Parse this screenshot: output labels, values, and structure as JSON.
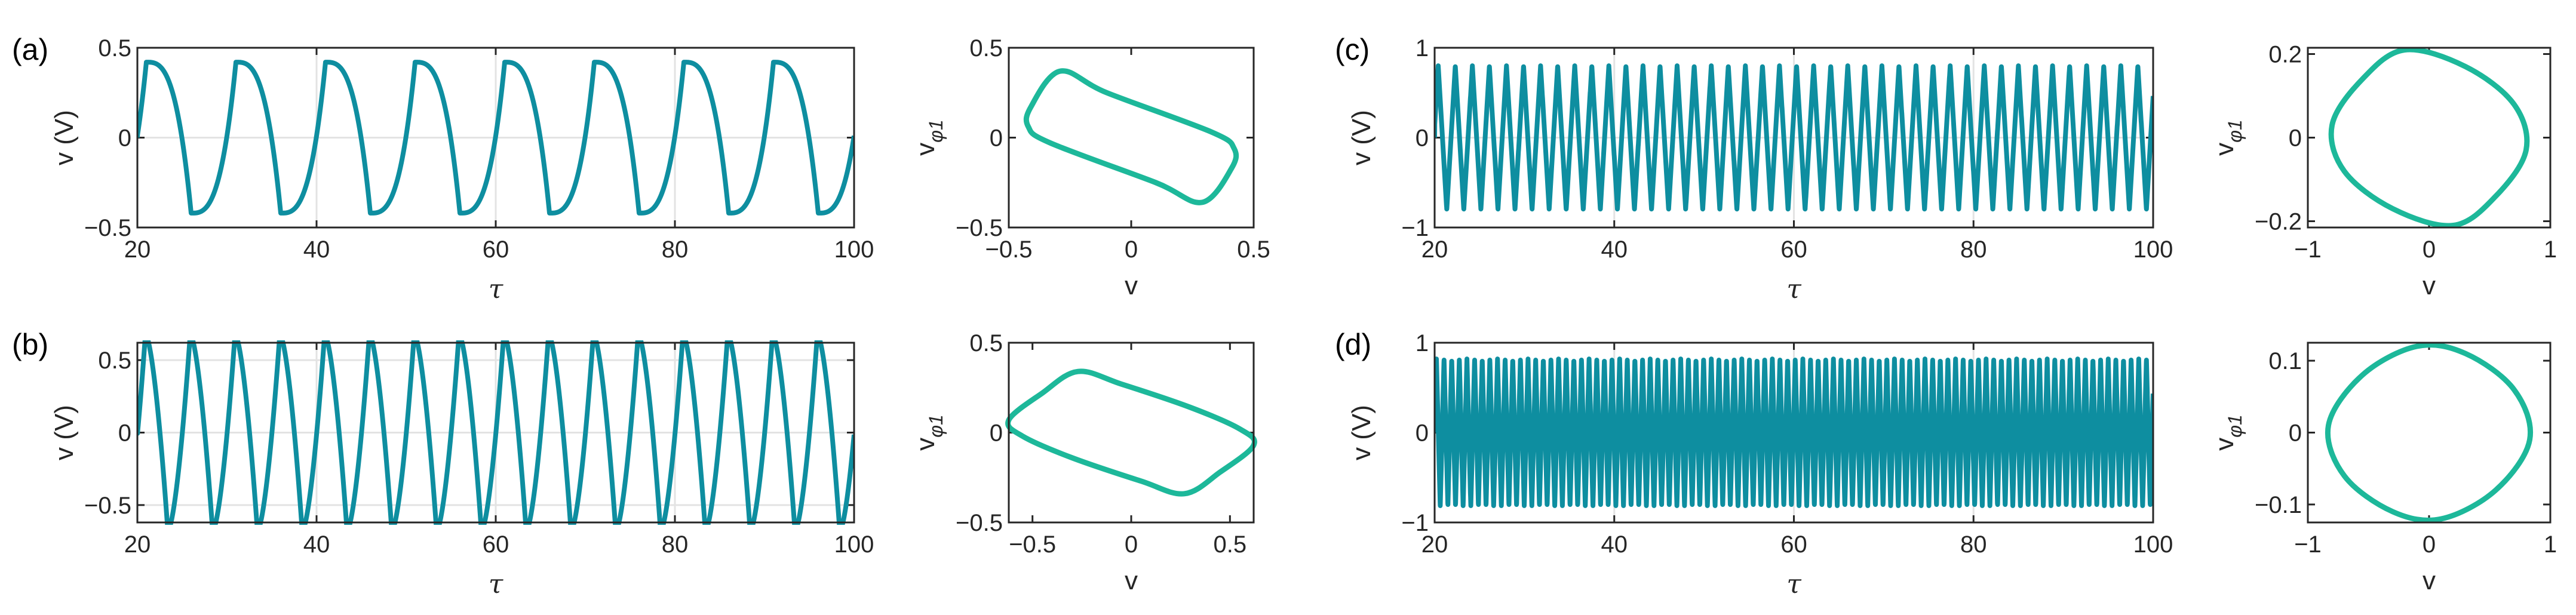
{
  "colors": {
    "time_series": "#0e8ea0",
    "phase": "#1db89a",
    "grid": "#e3e3e3",
    "axis": "#262626"
  },
  "chart_data": [
    {
      "label": "(a)",
      "time": {
        "type": "line",
        "xlabel": "τ",
        "ylabel": "v (V)",
        "xlim": [
          20,
          100
        ],
        "ylim": [
          -0.5,
          0.5
        ],
        "xticks": [
          20,
          40,
          60,
          80,
          100
        ],
        "xtick_labels": [
          "20",
          "40",
          "60",
          "80",
          "100"
        ],
        "yticks": [
          0.5,
          0,
          -0.5
        ],
        "ytick_labels": [
          "0.5",
          "0",
          "−0.5"
        ],
        "grid": true,
        "series": {
          "period": 10,
          "amplitude": 0.42,
          "first_peak": 21,
          "shape_exponent": 3
        }
      },
      "phase": {
        "type": "line",
        "xlabel": "v",
        "ylabel_main": "v",
        "ylabel_sub": "φ1",
        "xlim": [
          -0.5,
          0.5
        ],
        "ylim": [
          -0.5,
          0.5
        ],
        "xticks": [
          -0.5,
          0,
          0.5
        ],
        "xtick_labels": [
          "−0.5",
          "0",
          "0.5"
        ],
        "yticks": [
          0.5,
          0,
          -0.5
        ],
        "ytick_labels": [
          "0.5",
          "0",
          "−0.5"
        ],
        "points": [
          [
            -0.29,
            0.37
          ],
          [
            -0.1,
            0.25
          ],
          [
            0.33,
            0.03
          ],
          [
            0.42,
            -0.06
          ],
          [
            0.41,
            -0.17
          ],
          [
            0.29,
            -0.36
          ],
          [
            0.1,
            -0.25
          ],
          [
            -0.33,
            -0.03
          ],
          [
            -0.42,
            0.06
          ],
          [
            -0.41,
            0.17
          ]
        ]
      }
    },
    {
      "label": "(b)",
      "time": {
        "type": "line",
        "xlabel": "τ",
        "ylabel": "v (V)",
        "xlim": [
          20,
          100
        ],
        "ylim": [
          -0.62,
          0.62
        ],
        "xticks": [
          20,
          40,
          60,
          80,
          100
        ],
        "xtick_labels": [
          "20",
          "40",
          "60",
          "80",
          "100"
        ],
        "yticks": [
          0.5,
          0,
          -0.5
        ],
        "ytick_labels": [
          "0.5",
          "0",
          "−0.5"
        ],
        "grid": true,
        "series": {
          "period": 5,
          "amplitude": 0.68,
          "first_peak": 20.9,
          "shape_exponent": 1.6
        }
      },
      "phase": {
        "type": "line",
        "xlabel": "v",
        "ylabel_main": "v",
        "ylabel_sub": "φ1",
        "xlim": [
          -0.62,
          0.62
        ],
        "ylim": [
          -0.5,
          0.5
        ],
        "xticks": [
          -0.5,
          0,
          0.5
        ],
        "xtick_labels": [
          "−0.5",
          "0",
          "0.5"
        ],
        "yticks": [
          0.5,
          0,
          -0.5
        ],
        "ytick_labels": [
          "0.5",
          "0",
          "−0.5"
        ],
        "points": [
          [
            -0.62,
            0.07
          ],
          [
            -0.45,
            0.22
          ],
          [
            -0.27,
            0.34
          ],
          [
            -0.05,
            0.27
          ],
          [
            0.3,
            0.14
          ],
          [
            0.55,
            0.02
          ],
          [
            0.62,
            -0.07
          ],
          [
            0.45,
            -0.22
          ],
          [
            0.27,
            -0.34
          ],
          [
            0.05,
            -0.27
          ],
          [
            -0.3,
            -0.14
          ],
          [
            -0.55,
            -0.02
          ]
        ]
      }
    },
    {
      "label": "(c)",
      "time": {
        "type": "line",
        "xlabel": "τ",
        "ylabel": "v (V)",
        "xlim": [
          20,
          100
        ],
        "ylim": [
          -1,
          1
        ],
        "xticks": [
          20,
          40,
          60,
          80,
          100
        ],
        "xtick_labels": [
          "20",
          "40",
          "60",
          "80",
          "100"
        ],
        "yticks": [
          1,
          0,
          -1
        ],
        "ytick_labels": [
          "1",
          "0",
          "−1"
        ],
        "grid": true,
        "series": {
          "period": 1.9,
          "amplitude": 0.8,
          "first_peak": 20.4,
          "shape_exponent": 1
        }
      },
      "phase": {
        "type": "line",
        "xlabel": "v",
        "ylabel_main": "v",
        "ylabel_sub": "φ1",
        "xlim": [
          -1,
          1
        ],
        "ylim": [
          -0.215,
          0.215
        ],
        "xticks": [
          -1,
          0,
          1
        ],
        "xtick_labels": [
          "−1",
          "0",
          "1"
        ],
        "yticks": [
          0.2,
          0,
          -0.2
        ],
        "ytick_labels": [
          "0.2",
          "0",
          "−0.2"
        ],
        "points": [
          [
            -0.2,
            0.21
          ],
          [
            -0.55,
            0.14
          ],
          [
            -0.8,
            0.03
          ],
          [
            -0.7,
            -0.08
          ],
          [
            -0.3,
            -0.17
          ],
          [
            0.2,
            -0.21
          ],
          [
            0.55,
            -0.14
          ],
          [
            0.8,
            -0.03
          ],
          [
            0.7,
            0.08
          ],
          [
            0.3,
            0.17
          ]
        ]
      }
    },
    {
      "label": "(d)",
      "time": {
        "type": "line",
        "xlabel": "τ",
        "ylabel": "v (V)",
        "xlim": [
          20,
          100
        ],
        "ylim": [
          -1,
          1
        ],
        "xticks": [
          20,
          40,
          60,
          80,
          100
        ],
        "xtick_labels": [
          "20",
          "40",
          "60",
          "80",
          "100"
        ],
        "yticks": [
          1,
          0,
          -1
        ],
        "ytick_labels": [
          "1",
          "0",
          "−1"
        ],
        "grid": true,
        "series": {
          "period": 0.85,
          "amplitude": 0.82,
          "first_peak": 20.2,
          "shape_exponent": 1
        }
      },
      "phase": {
        "type": "line",
        "xlabel": "v",
        "ylabel_main": "v",
        "ylabel_sub": "φ1",
        "xlim": [
          -1,
          1
        ],
        "ylim": [
          -0.125,
          0.125
        ],
        "xticks": [
          -1,
          0,
          1
        ],
        "xtick_labels": [
          "−1",
          "0",
          "1"
        ],
        "yticks": [
          0.1,
          0,
          -0.1
        ],
        "ytick_labels": [
          "0.1",
          "0",
          "−0.1"
        ],
        "points": [
          [
            -0.1,
            0.12
          ],
          [
            -0.55,
            0.08
          ],
          [
            -0.83,
            0.01
          ],
          [
            -0.7,
            -0.06
          ],
          [
            -0.3,
            -0.11
          ],
          [
            0.1,
            -0.12
          ],
          [
            0.55,
            -0.08
          ],
          [
            0.83,
            -0.01
          ],
          [
            0.7,
            0.06
          ],
          [
            0.3,
            0.11
          ]
        ]
      }
    }
  ]
}
